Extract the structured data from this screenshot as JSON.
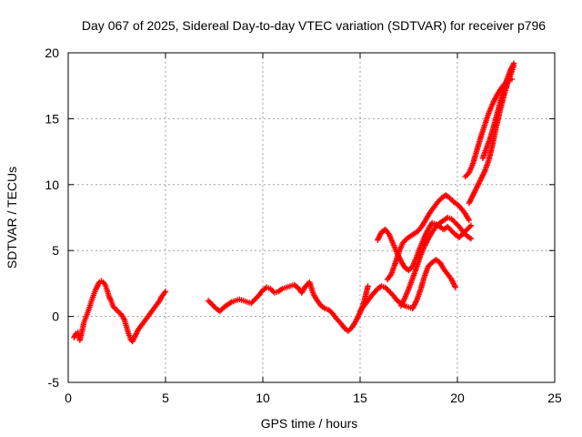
{
  "chart_data": {
    "type": "scatter",
    "title": "Day 067 of 2025, Sidereal Day-to-day VTEC variation (SDTVAR) for receiver p796",
    "xlabel": "GPS time / hours",
    "ylabel": "SDTVAR / TECUs",
    "xlim": [
      0,
      25
    ],
    "ylim": [
      -5,
      20
    ],
    "xticks": [
      "0",
      "5",
      "10",
      "15",
      "20",
      "25"
    ],
    "yticks": [
      "-5",
      "0",
      "5",
      "10",
      "15",
      "20"
    ],
    "grid": true,
    "marker": "+",
    "color": "#ff0000",
    "series": [
      {
        "x": [
          0.3,
          0.4,
          0.5,
          0.6,
          0.7,
          0.8,
          0.9,
          1.0,
          1.1,
          1.2,
          1.3,
          1.4,
          1.5,
          1.6,
          1.7,
          1.8,
          1.9,
          2.0,
          2.1,
          2.2,
          2.3,
          2.4,
          2.5,
          2.6,
          2.7,
          2.8,
          2.9,
          3.0,
          3.1,
          3.2,
          3.3,
          3.4,
          3.5,
          3.6,
          3.7,
          3.8,
          3.9,
          4.0,
          4.1,
          4.2,
          4.3,
          4.4,
          4.5,
          4.6,
          4.7,
          4.8,
          4.9,
          5.0
        ],
        "y": [
          -1.6,
          -1.3,
          -1.2,
          -1.8,
          -1.2,
          -0.5,
          -0.1,
          0.3,
          0.7,
          1.2,
          1.6,
          2.0,
          2.3,
          2.6,
          2.7,
          2.6,
          2.4,
          2.0,
          1.5,
          1.2,
          0.8,
          0.6,
          0.5,
          0.3,
          0.2,
          0.0,
          -0.3,
          -0.8,
          -1.3,
          -1.7,
          -1.9,
          -1.6,
          -1.3,
          -1.0,
          -0.8,
          -0.6,
          -0.4,
          -0.2,
          0.0,
          0.2,
          0.4,
          0.6,
          0.8,
          1.0,
          1.2,
          1.5,
          1.7,
          1.9
        ]
      },
      {
        "x": [
          7.2,
          7.4,
          7.6,
          7.8,
          8.0,
          8.2,
          8.4,
          8.6,
          8.8,
          9.0,
          9.2,
          9.4,
          9.6,
          9.8,
          10.0,
          10.2,
          10.4,
          10.6,
          10.8,
          11.0,
          11.2,
          11.4,
          11.6,
          11.8,
          12.0,
          12.2,
          12.4,
          12.6,
          12.8,
          13.0,
          13.2,
          13.4,
          13.6,
          13.8,
          14.0,
          14.2,
          14.4,
          14.6,
          14.8,
          15.0,
          15.2,
          15.4
        ],
        "y": [
          1.2,
          0.9,
          0.6,
          0.4,
          0.7,
          0.9,
          1.1,
          1.2,
          1.3,
          1.2,
          1.1,
          1.0,
          1.3,
          1.6,
          2.0,
          2.2,
          2.1,
          1.8,
          1.9,
          2.1,
          2.2,
          2.3,
          2.4,
          2.2,
          1.8,
          2.3,
          2.6,
          1.7,
          1.2,
          0.8,
          0.6,
          0.5,
          0.2,
          -0.2,
          -0.5,
          -0.9,
          -1.1,
          -0.8,
          -0.3,
          0.3,
          1.1,
          2.3
        ]
      },
      {
        "x": [
          15.0,
          15.3,
          15.6,
          15.9,
          16.1,
          16.3,
          16.5,
          16.7,
          16.9,
          17.1,
          17.3,
          17.5,
          17.7,
          17.9,
          18.1,
          18.3,
          18.5,
          18.7,
          18.9,
          19.1,
          19.3,
          19.5,
          19.7,
          19.9
        ],
        "y": [
          0.4,
          1.0,
          1.6,
          2.1,
          2.3,
          2.2,
          1.9,
          1.6,
          1.2,
          1.0,
          0.8,
          0.7,
          0.6,
          1.2,
          2.0,
          3.0,
          3.8,
          4.1,
          4.3,
          4.1,
          3.6,
          3.2,
          2.8,
          2.2
        ]
      },
      {
        "x": [
          15.9,
          16.1,
          16.3,
          16.5,
          16.7,
          16.9,
          17.1,
          17.3,
          17.5,
          17.7,
          17.9,
          18.1,
          18.3,
          18.5,
          18.7,
          18.9,
          19.1,
          19.3,
          19.5,
          19.7,
          19.9,
          20.1,
          20.3,
          20.5,
          20.7
        ],
        "y": [
          5.8,
          6.4,
          6.6,
          6.2,
          5.5,
          4.8,
          4.2,
          3.7,
          3.5,
          3.8,
          4.5,
          5.3,
          6.0,
          6.6,
          7.1,
          7.0,
          6.8,
          6.6,
          6.8,
          6.5,
          6.2,
          6.0,
          6.3,
          6.6,
          6.9
        ]
      },
      {
        "x": [
          16.4,
          16.6,
          16.8,
          17.0,
          17.2,
          17.4,
          17.6,
          17.8,
          18.0,
          18.2,
          18.4,
          18.6,
          18.8,
          19.0,
          19.2,
          19.4,
          19.6,
          19.8,
          20.0,
          20.2,
          20.4,
          20.6
        ],
        "y": [
          2.8,
          3.2,
          4.0,
          4.9,
          5.6,
          5.9,
          6.1,
          6.3,
          6.5,
          6.9,
          7.4,
          7.9,
          8.3,
          8.7,
          9.0,
          9.2,
          9.0,
          8.7,
          8.5,
          8.2,
          7.8,
          7.3
        ]
      },
      {
        "x": [
          17.1,
          17.3,
          17.5,
          17.7,
          17.9,
          18.1,
          18.3,
          18.5,
          18.7,
          18.9,
          19.1,
          19.3,
          19.5,
          19.7,
          19.9,
          20.1,
          20.3,
          20.5,
          20.7
        ],
        "y": [
          0.8,
          1.4,
          2.1,
          2.9,
          3.7,
          4.6,
          5.3,
          5.9,
          6.4,
          6.8,
          7.1,
          7.3,
          7.5,
          7.4,
          7.1,
          6.8,
          6.4,
          6.1,
          5.9
        ]
      },
      {
        "x": [
          20.4,
          20.6,
          20.8,
          21.0,
          21.2,
          21.4,
          21.6,
          21.8,
          22.0,
          22.2,
          22.4,
          22.6,
          22.8
        ],
        "y": [
          10.6,
          10.9,
          11.6,
          12.6,
          13.6,
          14.5,
          15.4,
          16.1,
          16.7,
          17.2,
          17.6,
          17.9,
          18.0
        ]
      },
      {
        "x": [
          20.6,
          20.8,
          21.0,
          21.2,
          21.4,
          21.6,
          21.8,
          22.0,
          22.2,
          22.4,
          22.6,
          22.8,
          22.9
        ],
        "y": [
          8.6,
          9.2,
          9.8,
          10.4,
          11.0,
          11.8,
          13.0,
          14.4,
          15.7,
          16.8,
          17.8,
          18.6,
          19.0
        ]
      },
      {
        "x": [
          21.3,
          21.5,
          21.7,
          21.9,
          22.1,
          22.3,
          22.5,
          22.7,
          22.9
        ],
        "y": [
          12.0,
          12.8,
          13.6,
          14.6,
          15.7,
          16.8,
          17.8,
          18.6,
          19.2
        ]
      }
    ]
  }
}
